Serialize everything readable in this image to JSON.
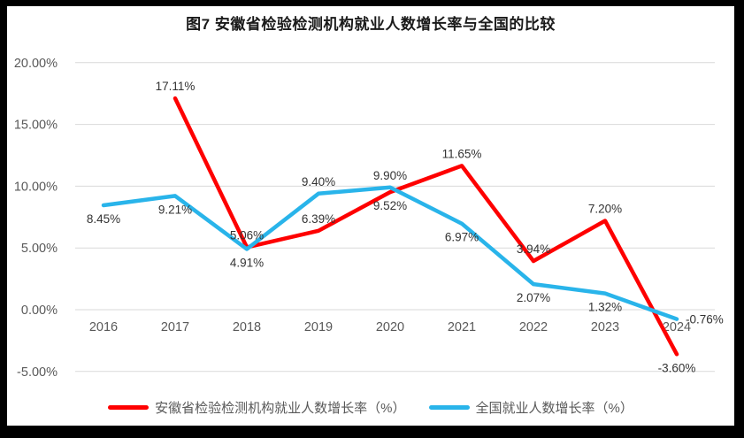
{
  "figure": {
    "title": "图7  安徽省检验检测机构就业人数增长率与全国的比较"
  },
  "chart_data": {
    "type": "line",
    "title": "图7 安徽省检验检测机构就业人数增长率与全国的比较",
    "categories": [
      "2016",
      "2017",
      "2018",
      "2019",
      "2020",
      "2021",
      "2022",
      "2023",
      "2024"
    ],
    "series": [
      {
        "name": "安徽省检验检测机构就业人数增长率（%）",
        "color": "#fe0000",
        "values": [
          null,
          17.11,
          5.06,
          6.39,
          9.52,
          11.65,
          3.94,
          7.2,
          -3.6
        ],
        "data_labels": [
          null,
          "17.11%",
          "5.06%",
          "6.39%",
          "9.52%",
          "11.65%",
          "3.94%",
          "7.20%",
          "-3.60%"
        ],
        "label_positions": [
          null,
          "above",
          "above",
          "above",
          "below",
          "above",
          "above",
          "above",
          "below"
        ]
      },
      {
        "name": "全国就业人数增长率（%）",
        "color": "#29b4ea",
        "values": [
          8.45,
          9.21,
          4.91,
          9.4,
          9.9,
          6.97,
          2.07,
          1.32,
          -0.76
        ],
        "data_labels": [
          "8.45%",
          "9.21%",
          "4.91%",
          "9.40%",
          "9.90%",
          "6.97%",
          "2.07%",
          "1.32%",
          "-0.76%"
        ],
        "label_positions": [
          "below",
          "below",
          "below",
          "above",
          "above",
          "below",
          "below",
          "below",
          "right"
        ]
      }
    ],
    "ylim": [
      -5,
      20
    ],
    "ytick_step": 5,
    "ytick_labels": [
      "20.00%",
      "15.00%",
      "10.00%",
      "5.00%",
      "0.00%",
      "-5.00%"
    ],
    "grid": true,
    "legend_position": "bottom",
    "colors": {
      "grid": "#d9d9d9",
      "axis_text": "#595959",
      "data_label_text": "#333333",
      "background": "#ffffff",
      "frame": "#000000"
    }
  }
}
